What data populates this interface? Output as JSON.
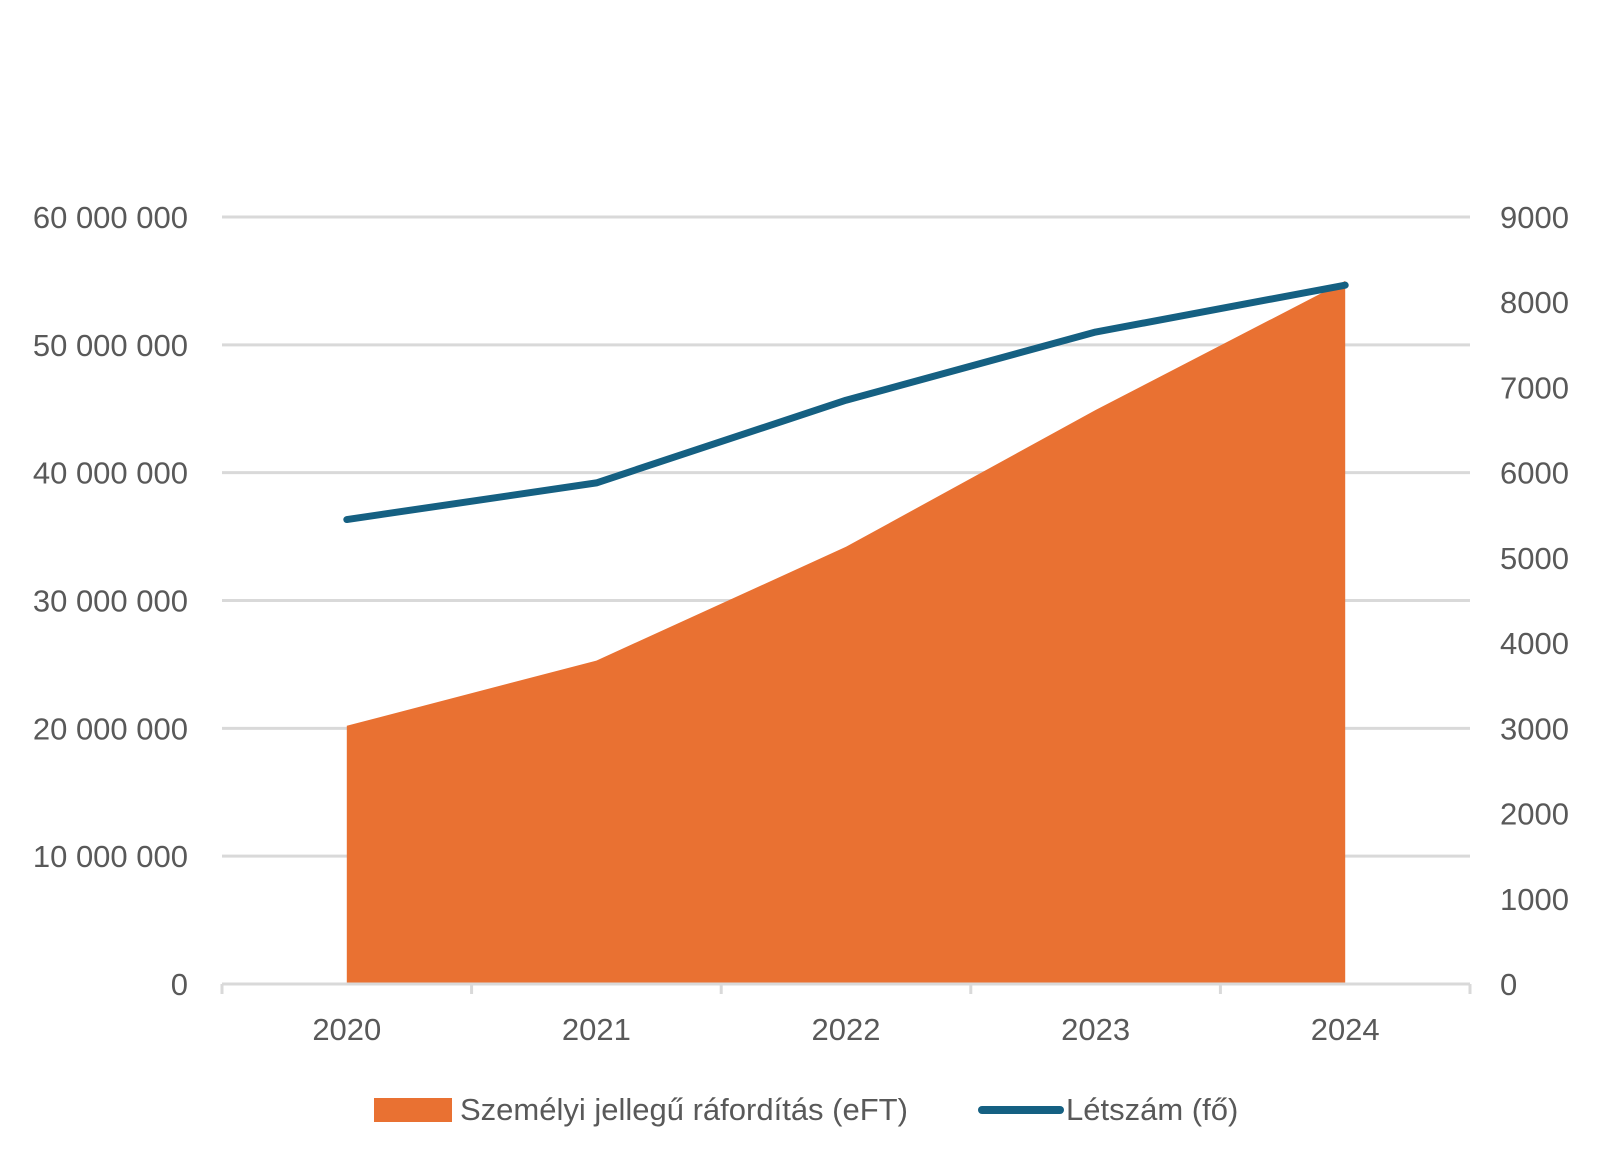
{
  "chart_data": {
    "type": "area",
    "categories": [
      "2020",
      "2021",
      "2022",
      "2023",
      "2024"
    ],
    "series": [
      {
        "name": "Személyi jellegű ráfordítás (eFT)",
        "type": "area",
        "axis": "left",
        "values": [
          20200000,
          25300000,
          34200000,
          44900000,
          55000000
        ],
        "color": "#E97132"
      },
      {
        "name": "Létszám (fő)",
        "type": "line",
        "axis": "right",
        "values": [
          5450,
          5880,
          6850,
          7650,
          8200
        ],
        "color": "#156082"
      }
    ],
    "y_left": {
      "range": [
        0,
        60000000
      ],
      "ticks": [
        0,
        10000000,
        20000000,
        30000000,
        40000000,
        50000000,
        60000000
      ],
      "tick_labels": [
        "0",
        "10 000 000",
        "20 000 000",
        "30 000 000",
        "40 000 000",
        "50 000 000",
        "60 000 000"
      ]
    },
    "y_right": {
      "range": [
        0,
        9000
      ],
      "ticks": [
        0,
        1000,
        2000,
        3000,
        4000,
        5000,
        6000,
        7000,
        8000,
        9000
      ],
      "tick_labels": [
        "0",
        "1000",
        "2000",
        "3000",
        "4000",
        "5000",
        "6000",
        "7000",
        "8000",
        "9000"
      ]
    },
    "grid": true,
    "legend_position": "bottom",
    "colors": {
      "grid": "#D9D9D9",
      "axis": "#D9D9D9",
      "text": "#595959"
    }
  }
}
